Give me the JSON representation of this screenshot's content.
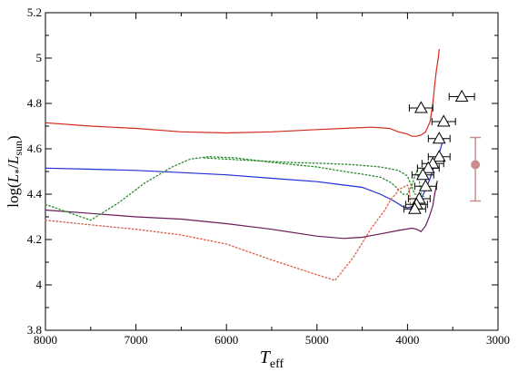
{
  "chart_data": {
    "type": "line",
    "xlabel": "T",
    "xlabel_sub": "eff",
    "ylabel_parts": [
      "log(",
      "L",
      "*",
      "/",
      "L",
      "sun",
      ")"
    ],
    "xlim": [
      8000,
      3000
    ],
    "ylim": [
      3.8,
      5.2
    ],
    "xticks": [
      8000,
      7000,
      6000,
      5000,
      4000,
      3000
    ],
    "yticks": [
      3.8,
      4,
      4.2,
      4.4,
      4.6,
      4.8,
      5,
      5.2
    ],
    "xtick_labels": [
      "8000",
      "7000",
      "6000",
      "5000",
      "4000",
      "3000"
    ],
    "ytick_labels": [
      "3.8",
      "4",
      "4.2",
      "4.4",
      "4.6",
      "4.8",
      "5",
      "5.2"
    ],
    "grid": false,
    "series": [
      {
        "color": "#d42a1c",
        "style": "solid",
        "points": [
          [
            8000,
            4.715
          ],
          [
            7500,
            4.7
          ],
          [
            7000,
            4.69
          ],
          [
            6500,
            4.675
          ],
          [
            6000,
            4.67
          ],
          [
            5500,
            4.675
          ],
          [
            5000,
            4.685
          ],
          [
            4700,
            4.69
          ],
          [
            4400,
            4.695
          ],
          [
            4200,
            4.69
          ],
          [
            4100,
            4.675
          ],
          [
            4000,
            4.665
          ],
          [
            3950,
            4.655
          ],
          [
            3900,
            4.655
          ],
          [
            3850,
            4.66
          ],
          [
            3800,
            4.675
          ],
          [
            3750,
            4.72
          ],
          [
            3720,
            4.8
          ],
          [
            3700,
            4.88
          ],
          [
            3680,
            4.95
          ],
          [
            3660,
            5.0
          ],
          [
            3650,
            5.04
          ]
        ]
      },
      {
        "color": "#1f2ed6",
        "style": "solid",
        "points": [
          [
            8000,
            4.515
          ],
          [
            7500,
            4.51
          ],
          [
            7000,
            4.505
          ],
          [
            6500,
            4.495
          ],
          [
            6000,
            4.485
          ],
          [
            5500,
            4.47
          ],
          [
            5000,
            4.455
          ],
          [
            4700,
            4.44
          ],
          [
            4500,
            4.43
          ],
          [
            4300,
            4.4
          ],
          [
            4150,
            4.37
          ],
          [
            4050,
            4.345
          ],
          [
            4000,
            4.34
          ],
          [
            3950,
            4.345
          ],
          [
            3900,
            4.36
          ],
          [
            3850,
            4.38
          ],
          [
            3800,
            4.42
          ],
          [
            3750,
            4.47
          ],
          [
            3700,
            4.53
          ],
          [
            3650,
            4.58
          ],
          [
            3620,
            4.62
          ],
          [
            3600,
            4.645
          ]
        ]
      },
      {
        "color": "#6b1a5c",
        "style": "solid",
        "points": [
          [
            8000,
            4.33
          ],
          [
            7500,
            4.315
          ],
          [
            7000,
            4.3
          ],
          [
            6500,
            4.29
          ],
          [
            6000,
            4.27
          ],
          [
            5500,
            4.245
          ],
          [
            5000,
            4.215
          ],
          [
            4700,
            4.205
          ],
          [
            4500,
            4.21
          ],
          [
            4300,
            4.225
          ],
          [
            4100,
            4.24
          ],
          [
            3950,
            4.25
          ],
          [
            3900,
            4.245
          ],
          [
            3850,
            4.235
          ],
          [
            3800,
            4.26
          ],
          [
            3760,
            4.3
          ],
          [
            3720,
            4.35
          ],
          [
            3700,
            4.4
          ],
          [
            3680,
            4.44
          ],
          [
            3670,
            4.46
          ]
        ]
      },
      {
        "color": "#2a8a2a",
        "style": "dotted",
        "points": [
          [
            8000,
            4.355
          ],
          [
            7750,
            4.32
          ],
          [
            7500,
            4.285
          ],
          [
            7200,
            4.36
          ],
          [
            6900,
            4.45
          ],
          [
            6600,
            4.52
          ],
          [
            6400,
            4.555
          ],
          [
            6200,
            4.565
          ],
          [
            5900,
            4.56
          ],
          [
            5500,
            4.54
          ],
          [
            5000,
            4.52
          ],
          [
            4700,
            4.5
          ],
          [
            4450,
            4.485
          ],
          [
            4300,
            4.475
          ],
          [
            4200,
            4.455
          ],
          [
            4150,
            4.44
          ],
          [
            4100,
            4.42
          ],
          [
            4050,
            4.4
          ],
          [
            4000,
            4.4
          ],
          [
            3950,
            4.44
          ],
          [
            3920,
            4.48
          ],
          [
            3900,
            4.5
          ],
          [
            3870,
            4.46
          ],
          [
            3850,
            4.4
          ],
          [
            3820,
            4.39
          ]
        ]
      },
      {
        "color": "#2a8a2a",
        "style": "dotted",
        "points": [
          [
            6250,
            4.56
          ],
          [
            5800,
            4.55
          ],
          [
            5300,
            4.54
          ],
          [
            4900,
            4.535
          ],
          [
            4600,
            4.53
          ],
          [
            4300,
            4.52
          ],
          [
            4100,
            4.505
          ],
          [
            4000,
            4.48
          ],
          [
            3950,
            4.43
          ],
          [
            3920,
            4.4
          ],
          [
            3900,
            4.4
          ]
        ]
      },
      {
        "color": "#e05a45",
        "style": "dotted",
        "points": [
          [
            8000,
            4.285
          ],
          [
            7500,
            4.265
          ],
          [
            7000,
            4.245
          ],
          [
            6500,
            4.22
          ],
          [
            6000,
            4.18
          ],
          [
            5500,
            4.11
          ],
          [
            5000,
            4.045
          ],
          [
            4800,
            4.02
          ],
          [
            4600,
            4.12
          ],
          [
            4400,
            4.25
          ],
          [
            4250,
            4.33
          ],
          [
            4180,
            4.38
          ],
          [
            4130,
            4.4
          ],
          [
            4100,
            4.42
          ],
          [
            4050,
            4.43
          ],
          [
            4000,
            4.44
          ],
          [
            3980,
            4.42
          ],
          [
            3970,
            4.36
          ],
          [
            3960,
            4.33
          ],
          [
            3950,
            4.34
          ],
          [
            3940,
            4.36
          ]
        ]
      }
    ],
    "observations": [
      {
        "x": 3850,
        "y": 4.78,
        "xerr": 130
      },
      {
        "x": 3400,
        "y": 4.83,
        "xerr": 140
      },
      {
        "x": 3600,
        "y": 4.72,
        "xerr": 130
      },
      {
        "x": 3650,
        "y": 4.645,
        "xerr": 120
      },
      {
        "x": 3650,
        "y": 4.565,
        "xerr": 120
      },
      {
        "x": 3720,
        "y": 4.535,
        "xerr": 120
      },
      {
        "x": 3770,
        "y": 4.515,
        "xerr": 120
      },
      {
        "x": 3830,
        "y": 4.485,
        "xerr": 120
      },
      {
        "x": 3800,
        "y": 4.435,
        "xerr": 120
      },
      {
        "x": 3870,
        "y": 4.38,
        "xerr": 120
      },
      {
        "x": 3900,
        "y": 4.355,
        "xerr": 120
      },
      {
        "x": 3920,
        "y": 4.335,
        "xerr": 120
      }
    ],
    "reference_point": {
      "x": 3250,
      "y": 4.53,
      "yerr_low": 4.37,
      "yerr_high": 4.65,
      "color": "#c98d8d"
    }
  }
}
